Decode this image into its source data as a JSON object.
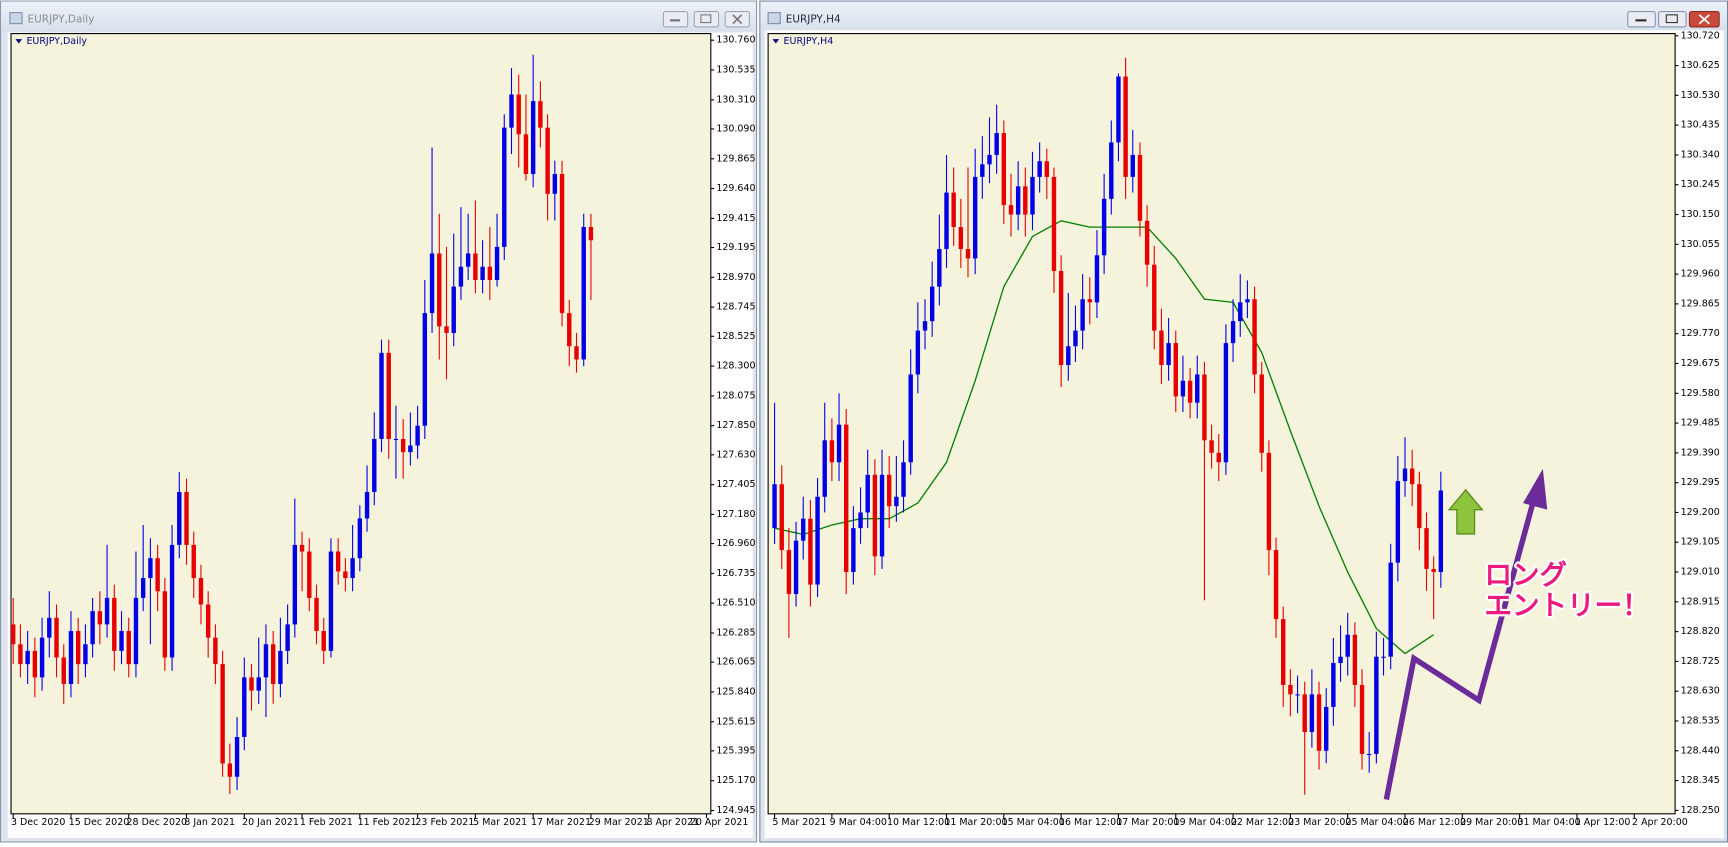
{
  "chart_data": [
    {
      "type": "candlestick",
      "window_title": "EURJPY,Daily",
      "title": "EURJPY,Daily",
      "up_color": "#0000e6",
      "down_color": "#e60000",
      "grid": false,
      "ylim": [
        124.92,
        130.81
      ],
      "yticks": [
        {
          "value": 130.76,
          "label": "130.760"
        },
        130.535,
        {
          "value": 130.31,
          "label": "130.310"
        },
        {
          "value": 130.09,
          "label": "130.090"
        },
        129.865,
        {
          "value": 129.64,
          "label": "129.640"
        },
        129.415,
        129.195,
        {
          "value": 128.97,
          "label": "128.970"
        },
        128.745,
        128.525,
        {
          "value": 128.3,
          "label": "128.300"
        },
        128.075,
        {
          "value": 127.85,
          "label": "127.850"
        },
        {
          "value": 127.63,
          "label": "127.630"
        },
        127.405,
        {
          "value": 127.18,
          "label": "127.180"
        },
        {
          "value": 126.96,
          "label": "126.960"
        },
        126.735,
        {
          "value": 126.51,
          "label": "126.510"
        },
        126.285,
        126.065,
        {
          "value": 125.84,
          "label": "125.840"
        },
        125.615,
        125.395,
        {
          "value": 125.17,
          "label": "125.170"
        },
        124.945
      ],
      "xlim": [
        -0.3,
        96.6
      ],
      "xticks": [
        {
          "value": 0,
          "label": "3 Dec 2020"
        },
        {
          "value": 8,
          "label": "15 Dec 2020"
        },
        {
          "value": 16,
          "label": "28 Dec 2020"
        },
        {
          "value": 24,
          "label": "8 Jan 2021"
        },
        {
          "value": 32,
          "label": "20 Jan 2021"
        },
        {
          "value": 40,
          "label": "1 Feb 2021"
        },
        {
          "value": 48,
          "label": "11 Feb 2021"
        },
        {
          "value": 56,
          "label": "23 Feb 2021"
        },
        {
          "value": 64,
          "label": "5 Mar 2021"
        },
        {
          "value": 72,
          "label": "17 Mar 2021"
        },
        {
          "value": 80,
          "label": "29 Mar 2021"
        },
        {
          "value": 88,
          "label": "8 Apr 2021"
        },
        {
          "value": 96,
          "label": "20 Apr 2021"
        }
      ],
      "open": [
        126.35,
        126.2,
        126.05,
        126.15,
        125.95,
        126.25,
        126.4,
        126.1,
        125.9,
        126.3,
        126.05,
        126.2,
        126.45,
        126.35,
        126.55,
        126.15,
        126.3,
        126.05,
        126.55,
        126.7,
        126.85,
        126.6,
        126.1,
        126.95,
        127.35,
        126.95,
        126.7,
        126.5,
        126.25,
        126.05,
        125.3,
        125.2,
        125.5,
        125.95,
        125.85,
        125.95,
        126.2,
        125.9,
        126.15,
        126.35,
        126.95,
        126.9,
        126.55,
        126.3,
        126.15,
        126.9,
        126.75,
        126.7,
        126.85,
        127.15,
        127.35,
        127.75,
        128.4,
        127.75,
        127.75,
        127.65,
        127.7,
        127.85,
        128.7,
        129.15,
        128.6,
        128.55,
        128.9,
        129.05,
        129.15,
        128.95,
        129.05,
        128.95,
        129.2,
        130.1,
        130.35,
        130.05,
        129.75,
        130.3,
        130.1,
        129.6,
        129.75,
        128.7,
        128.45,
        128.35,
        129.35
      ],
      "high": [
        126.55,
        126.35,
        126.3,
        126.25,
        126.4,
        126.6,
        126.5,
        126.2,
        126.45,
        126.4,
        126.35,
        126.55,
        126.6,
        126.95,
        126.65,
        126.45,
        126.4,
        126.9,
        127.1,
        127.0,
        126.95,
        126.7,
        127.1,
        127.5,
        127.45,
        127.05,
        126.8,
        126.6,
        126.35,
        126.15,
        125.45,
        125.65,
        126.1,
        126.05,
        126.25,
        126.35,
        126.3,
        126.4,
        126.5,
        127.3,
        127.05,
        127.0,
        126.65,
        126.4,
        127.0,
        127.0,
        126.85,
        127.1,
        127.25,
        127.55,
        127.95,
        128.5,
        128.5,
        128.0,
        127.9,
        127.95,
        128.0,
        128.95,
        129.95,
        129.45,
        129.2,
        129.3,
        129.5,
        129.45,
        129.55,
        129.25,
        129.35,
        129.45,
        130.2,
        130.55,
        130.5,
        130.35,
        130.65,
        130.45,
        130.2,
        129.85,
        129.85,
        128.8,
        128.55,
        129.45,
        129.45
      ],
      "low": [
        126.05,
        125.95,
        125.9,
        125.8,
        125.85,
        126.1,
        125.95,
        125.75,
        125.8,
        125.9,
        125.95,
        126.1,
        126.2,
        126.25,
        126.0,
        126.05,
        125.95,
        125.95,
        126.45,
        126.2,
        126.45,
        126.0,
        126.0,
        126.85,
        126.8,
        126.55,
        126.35,
        126.1,
        125.9,
        125.2,
        125.07,
        125.1,
        125.4,
        125.7,
        125.75,
        125.65,
        125.75,
        125.8,
        126.05,
        126.25,
        126.6,
        126.45,
        126.2,
        126.05,
        126.1,
        126.65,
        126.6,
        126.6,
        126.75,
        127.05,
        127.25,
        127.65,
        127.6,
        127.45,
        127.45,
        127.55,
        127.6,
        127.75,
        128.55,
        128.35,
        128.2,
        128.45,
        128.8,
        128.95,
        128.85,
        128.85,
        128.8,
        128.9,
        129.1,
        129.9,
        129.8,
        129.7,
        129.65,
        129.95,
        129.4,
        129.4,
        128.6,
        128.3,
        128.25,
        128.3,
        128.8
      ],
      "close": [
        126.2,
        126.05,
        126.15,
        125.95,
        126.25,
        126.4,
        126.1,
        125.9,
        126.3,
        126.05,
        126.2,
        126.45,
        126.35,
        126.55,
        126.15,
        126.3,
        126.05,
        126.55,
        126.7,
        126.85,
        126.6,
        126.1,
        126.95,
        127.35,
        126.95,
        126.7,
        126.5,
        126.25,
        126.05,
        125.3,
        125.2,
        125.5,
        125.95,
        125.85,
        125.95,
        126.2,
        125.9,
        126.15,
        126.35,
        126.95,
        126.9,
        126.55,
        126.3,
        126.15,
        126.9,
        126.75,
        126.7,
        126.85,
        127.15,
        127.35,
        127.75,
        128.4,
        127.75,
        127.75,
        127.65,
        127.7,
        127.85,
        128.7,
        129.15,
        128.6,
        128.55,
        128.9,
        129.05,
        129.15,
        128.95,
        129.05,
        128.95,
        129.2,
        130.1,
        130.35,
        130.05,
        129.75,
        130.3,
        130.1,
        129.6,
        129.75,
        128.7,
        128.45,
        128.35,
        129.35,
        129.25
      ]
    },
    {
      "type": "candlestick",
      "window_title": "EURJPY,H4",
      "title": "EURJPY,H4",
      "up_color": "#0000e6",
      "down_color": "#e60000",
      "grid": false,
      "ylim": [
        128.239,
        130.727
      ],
      "yticks": [
        {
          "value": 130.72,
          "label": "130.720"
        },
        130.625,
        {
          "value": 130.53,
          "label": "130.530"
        },
        130.435,
        {
          "value": 130.34,
          "label": "130.340"
        },
        130.245,
        {
          "value": 130.15,
          "label": "130.150"
        },
        130.055,
        {
          "value": 129.96,
          "label": "129.960"
        },
        129.865,
        {
          "value": 129.77,
          "label": "129.770"
        },
        129.675,
        {
          "value": 129.58,
          "label": "129.580"
        },
        129.485,
        {
          "value": 129.39,
          "label": "129.390"
        },
        129.295,
        {
          "value": 129.2,
          "label": "129.200"
        },
        129.105,
        {
          "value": 129.01,
          "label": "129.010"
        },
        128.915,
        {
          "value": 128.82,
          "label": "128.820"
        },
        128.725,
        {
          "value": 128.63,
          "label": "128.630"
        },
        128.535,
        {
          "value": 128.44,
          "label": "128.440"
        },
        128.345,
        {
          "value": 128.25,
          "label": "128.250"
        }
      ],
      "xlim": [
        -0.9,
        125.7
      ],
      "xticks": [
        {
          "value": 0,
          "label": "5 Mar 2021"
        },
        {
          "value": 8,
          "label": "9 Mar 04:00"
        },
        {
          "value": 16,
          "label": "10 Mar 12:00"
        },
        {
          "value": 24,
          "label": "11 Mar 20:00"
        },
        {
          "value": 32,
          "label": "15 Mar 04:00"
        },
        {
          "value": 40,
          "label": "16 Mar 12:00"
        },
        {
          "value": 48,
          "label": "17 Mar 20:00"
        },
        {
          "value": 56,
          "label": "19 Mar 04:00"
        },
        {
          "value": 64,
          "label": "22 Mar 12:00"
        },
        {
          "value": 72,
          "label": "23 Mar 20:00"
        },
        {
          "value": 80,
          "label": "25 Mar 04:00"
        },
        {
          "value": 88,
          "label": "26 Mar 12:00"
        },
        {
          "value": 96,
          "label": "29 Mar 20:00"
        },
        {
          "value": 104,
          "label": "31 Mar 04:00"
        },
        {
          "value": 112,
          "label": "1 Apr 12:00"
        },
        {
          "value": 120,
          "label": "2 Apr 20:00"
        }
      ],
      "open": [
        129.15,
        129.29,
        129.08,
        128.94,
        129.11,
        129.18,
        128.97,
        129.25,
        129.43,
        129.36,
        129.48,
        129.01,
        129.15,
        129.2,
        129.32,
        129.06,
        129.32,
        129.22,
        129.25,
        129.36,
        129.64,
        129.78,
        129.81,
        129.92,
        130.04,
        130.22,
        130.11,
        130.04,
        130.01,
        130.27,
        130.31,
        130.34,
        130.41,
        130.18,
        130.15,
        130.24,
        130.15,
        130.27,
        130.32,
        130.27,
        129.97,
        129.67,
        129.73,
        129.78,
        129.88,
        129.87,
        130.02,
        130.2,
        130.38,
        130.59,
        130.27,
        130.34,
        130.13,
        129.99,
        129.78,
        129.67,
        129.74,
        129.57,
        129.62,
        129.55,
        129.64,
        129.43,
        129.39,
        129.36,
        129.74,
        129.81,
        129.87,
        129.88,
        129.64,
        129.39,
        129.08,
        128.86,
        128.65,
        128.62,
        128.62,
        128.5,
        128.62,
        128.44,
        128.58,
        128.72,
        128.74,
        128.81,
        128.65,
        128.43,
        128.43,
        128.74,
        128.74,
        129.04,
        129.3,
        129.34,
        129.29,
        129.15,
        129.02,
        129.01
      ],
      "high": [
        129.55,
        129.35,
        129.15,
        129.17,
        129.25,
        129.24,
        129.31,
        129.55,
        129.5,
        129.58,
        129.53,
        129.22,
        129.28,
        129.4,
        129.37,
        129.4,
        129.38,
        129.38,
        129.43,
        129.72,
        129.87,
        129.88,
        130.0,
        130.15,
        130.34,
        130.3,
        130.2,
        130.3,
        130.36,
        130.4,
        130.46,
        130.5,
        130.45,
        130.28,
        130.32,
        130.3,
        130.35,
        130.38,
        130.36,
        130.3,
        130.02,
        129.9,
        129.86,
        129.96,
        129.95,
        130.1,
        130.28,
        130.45,
        130.6,
        130.65,
        130.42,
        130.38,
        130.18,
        130.05,
        129.85,
        129.82,
        129.78,
        129.7,
        129.66,
        129.7,
        129.68,
        129.48,
        129.45,
        129.8,
        129.88,
        129.96,
        129.94,
        129.92,
        129.68,
        129.43,
        129.12,
        128.9,
        128.7,
        128.68,
        128.66,
        128.7,
        128.66,
        128.64,
        128.8,
        128.84,
        128.88,
        128.85,
        128.7,
        128.5,
        128.82,
        128.8,
        129.1,
        129.38,
        129.44,
        129.4,
        129.33,
        129.2,
        129.06,
        129.33
      ],
      "low": [
        129.1,
        129.02,
        128.8,
        128.9,
        129.05,
        128.9,
        128.93,
        129.2,
        129.3,
        129.3,
        128.94,
        128.97,
        129.1,
        129.15,
        129.0,
        129.02,
        129.15,
        129.17,
        129.2,
        129.32,
        129.58,
        129.72,
        129.76,
        129.86,
        129.98,
        130.05,
        129.98,
        129.95,
        129.96,
        130.2,
        130.25,
        130.28,
        130.12,
        130.08,
        130.1,
        130.08,
        130.1,
        130.22,
        130.2,
        129.9,
        129.6,
        129.62,
        129.68,
        129.72,
        129.8,
        129.82,
        129.96,
        130.15,
        130.32,
        130.2,
        130.22,
        130.08,
        129.92,
        129.72,
        129.61,
        129.62,
        129.52,
        129.52,
        129.5,
        129.5,
        128.92,
        129.34,
        129.3,
        129.32,
        129.68,
        129.76,
        129.82,
        129.58,
        129.33,
        129.0,
        128.8,
        128.58,
        128.55,
        128.56,
        128.3,
        128.45,
        128.38,
        128.4,
        128.52,
        128.66,
        128.68,
        128.58,
        128.38,
        128.37,
        128.4,
        128.68,
        128.7,
        128.98,
        129.25,
        129.22,
        129.08,
        128.95,
        128.86,
        128.96
      ],
      "close": [
        129.29,
        129.08,
        128.94,
        129.11,
        129.18,
        128.97,
        129.25,
        129.43,
        129.36,
        129.48,
        129.01,
        129.15,
        129.2,
        129.32,
        129.06,
        129.32,
        129.22,
        129.25,
        129.36,
        129.64,
        129.78,
        129.81,
        129.92,
        130.04,
        130.22,
        130.11,
        130.04,
        130.01,
        130.27,
        130.31,
        130.34,
        130.41,
        130.18,
        130.15,
        130.24,
        130.15,
        130.27,
        130.32,
        130.27,
        129.97,
        129.67,
        129.73,
        129.78,
        129.88,
        129.87,
        130.02,
        130.2,
        130.38,
        130.59,
        130.27,
        130.34,
        130.13,
        129.99,
        129.78,
        129.67,
        129.74,
        129.57,
        129.62,
        129.55,
        129.64,
        129.43,
        129.39,
        129.36,
        129.74,
        129.81,
        129.87,
        129.88,
        129.64,
        129.39,
        129.08,
        128.86,
        128.65,
        128.62,
        128.62,
        128.5,
        128.62,
        128.44,
        128.58,
        128.72,
        128.74,
        128.81,
        128.65,
        128.43,
        128.43,
        128.74,
        128.74,
        129.04,
        129.3,
        129.34,
        129.29,
        129.15,
        129.02,
        129.01,
        129.27
      ],
      "ma": {
        "color": "#008000",
        "x": [
          0,
          4,
          8,
          12,
          16,
          20,
          24,
          28,
          32,
          36,
          40,
          44,
          48,
          52,
          56,
          60,
          64,
          68,
          72,
          76,
          80,
          84,
          88,
          92
        ],
        "values": [
          129.15,
          129.13,
          129.16,
          129.18,
          129.18,
          129.23,
          129.36,
          129.62,
          129.92,
          130.08,
          130.13,
          130.11,
          130.11,
          130.11,
          130.01,
          129.88,
          129.87,
          129.71,
          129.46,
          129.22,
          129.01,
          128.83,
          128.75,
          128.81
        ]
      },
      "annotations": [
        "ロング",
        "エントリー！"
      ]
    }
  ]
}
